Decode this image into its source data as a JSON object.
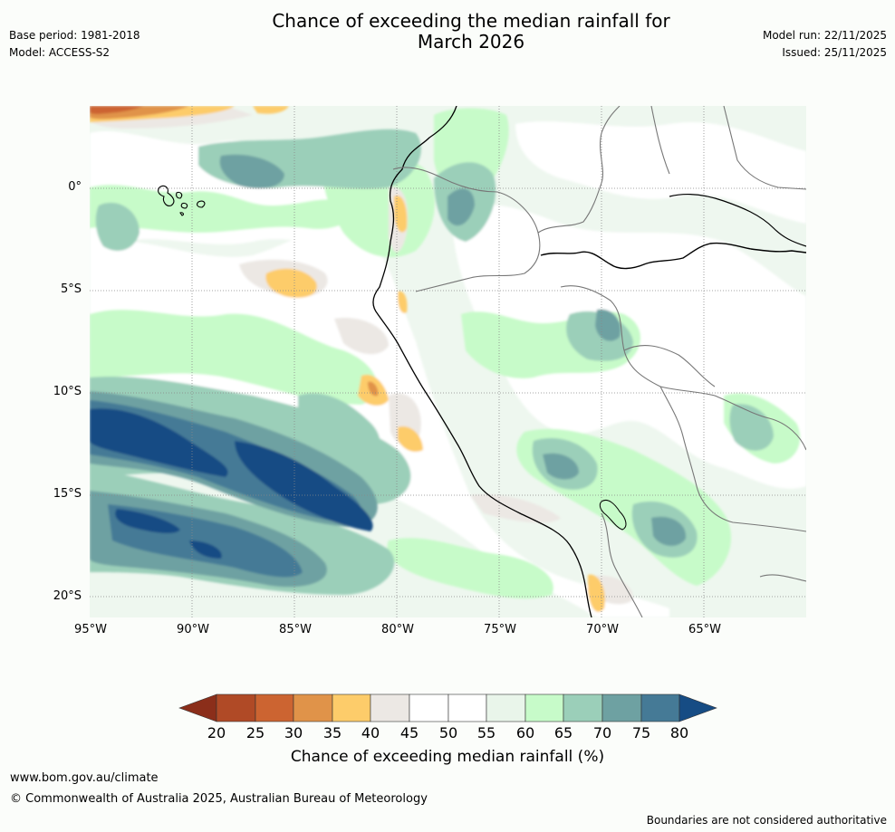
{
  "title_line1": "Chance of exceeding the median rainfall for",
  "title_line2": "March 2026",
  "base_period": "Base period: 1981-2018",
  "model": "Model: ACCESS-S2",
  "model_run": "Model run: 22/11/2025",
  "issued": "Issued: 25/11/2025",
  "lat_labels": [
    "0°",
    "5°S",
    "10°S",
    "15°S",
    "20°S"
  ],
  "lon_labels": [
    "95°W",
    "90°W",
    "85°W",
    "80°W",
    "75°W",
    "70°W",
    "65°W"
  ],
  "legend": {
    "ticks": [
      "20",
      "25",
      "30",
      "35",
      "40",
      "45",
      "50",
      "55",
      "60",
      "65",
      "70",
      "75",
      "80"
    ],
    "colors": {
      "below20": "#8b2e1a",
      "c20_25": "#b04a26",
      "c25_30": "#cc6431",
      "c30_35": "#e09349",
      "c35_40": "#fdcc6a",
      "c40_45": "#ece8e4",
      "c45_50": "#ffffff",
      "c50_55": "#ffffff",
      "c55_60": "#e9f5ea",
      "c60_65": "#c7fbc9",
      "c65_70": "#9bcfb9",
      "c70_75": "#6ea1a2",
      "c75_80": "#457a96",
      "above80": "#164c84"
    },
    "title": "Chance of exceeding median rainfall (%)"
  },
  "footer": {
    "website": "www.bom.gov.au/climate",
    "copyright": "© Commonwealth of Australia 2025, Australian Bureau of Meteorology",
    "disclaimer": "Boundaries are not considered authoritative"
  }
}
